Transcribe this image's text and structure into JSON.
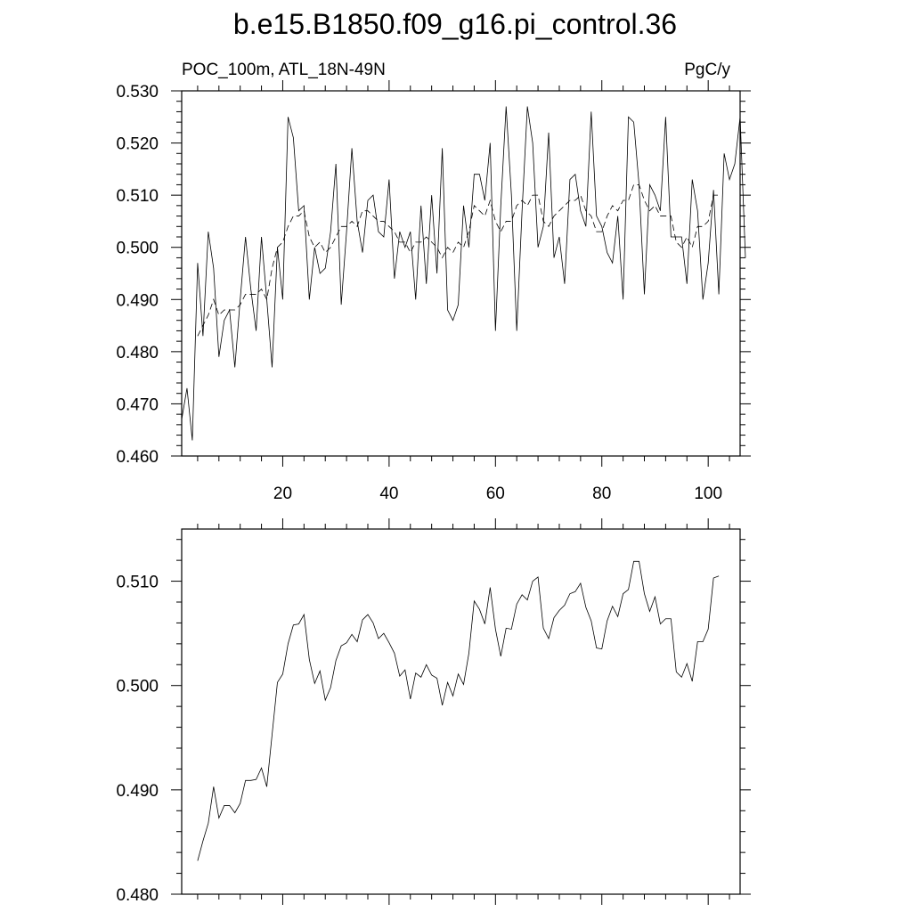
{
  "figure": {
    "title": "b.e15.B1850.f09_g16.pi_control.36"
  },
  "chart_data": [
    {
      "type": "line",
      "title": "",
      "left_label": "POC_100m, ATL_18N-49N",
      "right_label": "PgC/y",
      "xlabel": "",
      "ylabel": "",
      "xlim": [
        1,
        106
      ],
      "ylim": [
        0.46,
        0.53
      ],
      "grid": false,
      "x_major_ticks": [
        20,
        40,
        60,
        80,
        100
      ],
      "x_tick_labels": [
        "20",
        "40",
        "60",
        "80",
        "100"
      ],
      "y_major_ticks": [
        0.46,
        0.47,
        0.48,
        0.49,
        0.5,
        0.51,
        0.52,
        0.53
      ],
      "y_tick_labels": [
        "0.460",
        "0.470",
        "0.480",
        "0.490",
        "0.500",
        "0.510",
        "0.520",
        "0.530"
      ],
      "series": [
        {
          "style": "solid",
          "color": "#000000",
          "x_start": 1,
          "values": [
            0.467,
            0.473,
            0.463,
            0.497,
            0.483,
            0.503,
            0.496,
            0.479,
            0.486,
            0.488,
            0.477,
            0.49,
            0.502,
            0.492,
            0.484,
            0.502,
            0.49,
            0.477,
            0.5,
            0.49,
            0.525,
            0.521,
            0.507,
            0.508,
            0.49,
            0.5,
            0.495,
            0.496,
            0.503,
            0.516,
            0.489,
            0.503,
            0.519,
            0.505,
            0.499,
            0.509,
            0.51,
            0.503,
            0.502,
            0.513,
            0.494,
            0.503,
            0.5,
            0.503,
            0.49,
            0.508,
            0.493,
            0.51,
            0.495,
            0.519,
            0.488,
            0.486,
            0.489,
            0.508,
            0.5,
            0.514,
            0.514,
            0.509,
            0.52,
            0.484,
            0.508,
            0.527,
            0.51,
            0.484,
            0.507,
            0.527,
            0.52,
            0.5,
            0.504,
            0.522,
            0.498,
            0.502,
            0.493,
            0.513,
            0.514,
            0.507,
            0.504,
            0.526,
            0.506,
            0.504,
            0.499,
            0.497,
            0.506,
            0.49,
            0.525,
            0.524,
            0.512,
            0.491,
            0.512,
            0.51,
            0.507,
            0.525,
            0.502,
            0.502,
            0.502,
            0.493,
            0.513,
            0.507,
            0.49,
            0.497,
            0.511,
            0.491,
            0.518,
            0.513,
            0.516,
            0.525,
            0.498
          ]
        },
        {
          "style": "dashed",
          "color": "#000000",
          "x_start": 4,
          "values": [
            0.483,
            0.485,
            0.487,
            0.49,
            0.487,
            0.488,
            0.488,
            0.488,
            0.489,
            0.491,
            0.491,
            0.491,
            0.492,
            0.49,
            0.496,
            0.5,
            0.501,
            0.504,
            0.506,
            0.506,
            0.507,
            0.502,
            0.5,
            0.501,
            0.499,
            0.5,
            0.502,
            0.504,
            0.504,
            0.505,
            0.504,
            0.507,
            0.507,
            0.506,
            0.505,
            0.505,
            0.504,
            0.503,
            0.501,
            0.501,
            0.499,
            0.501,
            0.501,
            0.502,
            0.501,
            0.5,
            0.498,
            0.5,
            0.499,
            0.501,
            0.5,
            0.503,
            0.508,
            0.507,
            0.506,
            0.509,
            0.505,
            0.503,
            0.505,
            0.505,
            0.508,
            0.509,
            0.508,
            0.51,
            0.51,
            0.505,
            0.504,
            0.506,
            0.507,
            0.508,
            0.509,
            0.509,
            0.51,
            0.507,
            0.506,
            0.503,
            0.503,
            0.506,
            0.508,
            0.507,
            0.509,
            0.509,
            0.512,
            0.512,
            0.509,
            0.507,
            0.508,
            0.506,
            0.506,
            0.506,
            0.501,
            0.5,
            0.502,
            0.5,
            0.504,
            0.504,
            0.505,
            0.51,
            0.51
          ]
        }
      ]
    },
    {
      "type": "line",
      "title": "",
      "xlabel": "",
      "ylabel": "",
      "xlim": [
        1,
        106
      ],
      "ylim": [
        0.48,
        0.515
      ],
      "grid": false,
      "x_major_ticks": [
        20,
        40,
        60,
        80,
        100
      ],
      "y_major_ticks": [
        0.48,
        0.49,
        0.5,
        0.51
      ],
      "y_tick_labels": [
        "0.480",
        "0.490",
        "0.500",
        "0.510"
      ],
      "series": [
        {
          "style": "solid",
          "color": "#000000",
          "x_start": 4,
          "values": [
            0.4832,
            0.4851,
            0.4868,
            0.4903,
            0.4873,
            0.4885,
            0.4885,
            0.4878,
            0.4887,
            0.4909,
            0.4909,
            0.491,
            0.4921,
            0.4903,
            0.4953,
            0.5003,
            0.5011,
            0.504,
            0.5058,
            0.5059,
            0.5068,
            0.5025,
            0.5002,
            0.5014,
            0.4986,
            0.4998,
            0.5024,
            0.5038,
            0.5041,
            0.5049,
            0.5042,
            0.5063,
            0.5068,
            0.506,
            0.5045,
            0.505,
            0.5041,
            0.5031,
            0.5009,
            0.5015,
            0.4987,
            0.5012,
            0.5008,
            0.502,
            0.501,
            0.5007,
            0.4981,
            0.5003,
            0.499,
            0.5011,
            0.5001,
            0.5031,
            0.5081,
            0.5073,
            0.5059,
            0.5094,
            0.5054,
            0.5028,
            0.5055,
            0.5054,
            0.5078,
            0.5087,
            0.5082,
            0.51,
            0.5104,
            0.5055,
            0.5045,
            0.5065,
            0.5072,
            0.5077,
            0.5088,
            0.509,
            0.5098,
            0.5075,
            0.5062,
            0.5036,
            0.5035,
            0.5062,
            0.5076,
            0.5066,
            0.5088,
            0.5092,
            0.5119,
            0.5119,
            0.5088,
            0.5071,
            0.5085,
            0.5059,
            0.5064,
            0.5064,
            0.5013,
            0.5008,
            0.5021,
            0.5004,
            0.5042,
            0.5042,
            0.5054,
            0.5103,
            0.5105
          ]
        }
      ]
    }
  ]
}
